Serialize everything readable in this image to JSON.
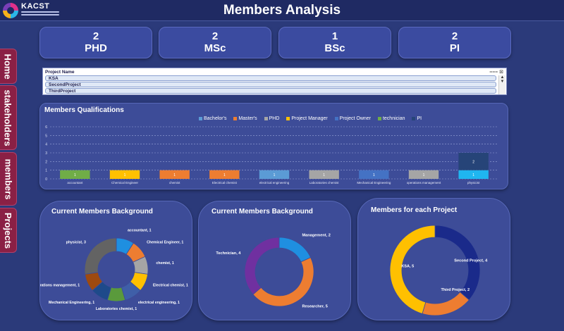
{
  "header": {
    "logo_text": "KACST",
    "title": "Members Analysis"
  },
  "nav": {
    "items": [
      {
        "label": "Home"
      },
      {
        "label": "stakeholders"
      },
      {
        "label": "members"
      },
      {
        "label": "Projects"
      }
    ]
  },
  "stats": [
    {
      "value": "2",
      "label": "PHD"
    },
    {
      "value": "2",
      "label": "MSc"
    },
    {
      "value": "1",
      "label": "BSc"
    },
    {
      "value": "2",
      "label": "PI"
    }
  ],
  "project_list": {
    "header": "Project Name",
    "items": [
      "KSA",
      "SecondProject",
      "ThirdProject"
    ]
  },
  "colors": {
    "bachelor": "#4a7fc0",
    "masters": "#ed7d31",
    "phd": "#a5a5a5",
    "project_manager": "#ffc000",
    "project_owner": "#4472c4",
    "technician": "#70ad47",
    "pi": "#264478"
  },
  "chart_data": [
    {
      "type": "bar",
      "title": "Members Qualifications",
      "legend": [
        "Bachelor's",
        "Master's",
        "PHD",
        "Project Manager",
        "Project Owner",
        "technician",
        "PI"
      ],
      "legend_position": "top",
      "grid": true,
      "ylim": [
        0,
        6
      ],
      "yticks": [
        0,
        1,
        2,
        3,
        4,
        5,
        6
      ],
      "categories": [
        "accountant",
        "Chemical Engineer",
        "chemist",
        "Electrical chemist",
        "electrical engineering",
        "Laboratories chemist",
        "Mechanical Engineering",
        "operations management",
        "physicist"
      ],
      "bars": [
        {
          "category": "accountant",
          "series": "technician",
          "value": 1,
          "color": "#70ad47"
        },
        {
          "category": "Chemical Engineer",
          "series": "Project Manager",
          "value": 1,
          "color": "#ffc000"
        },
        {
          "category": "chemist",
          "series": "Master's",
          "value": 1,
          "color": "#ed7d31"
        },
        {
          "category": "Electrical chemist",
          "series": "Master's",
          "value": 1,
          "color": "#ed7d31"
        },
        {
          "category": "electrical engineering",
          "series": "Bachelor's",
          "value": 1,
          "color": "#5b9bd5"
        },
        {
          "category": "Laboratories chemist",
          "series": "PHD",
          "value": 1,
          "color": "#a5a5a5"
        },
        {
          "category": "Mechanical Engineering",
          "series": "Project Owner",
          "value": 1,
          "color": "#4472c4"
        },
        {
          "category": "operations management",
          "series": "PHD",
          "value": 1,
          "color": "#a5a5a5"
        },
        {
          "category": "physicist",
          "series": "Bachelor's",
          "value": 1,
          "color": "#1fb6f0"
        },
        {
          "category": "physicist",
          "series": "PI",
          "value": 2,
          "color": "#264478"
        }
      ]
    },
    {
      "type": "pie",
      "donut": true,
      "title": "Current Members Background",
      "slices": [
        {
          "label": "accountant, 1",
          "value": 1,
          "color": "#1f8fe0"
        },
        {
          "label": "Chemical Engineer, 1",
          "value": 1,
          "color": "#ed7d31"
        },
        {
          "label": "chemist, 1",
          "value": 1,
          "color": "#a5a5a5"
        },
        {
          "label": "Electrical chemist, 1",
          "value": 1,
          "color": "#ffc000"
        },
        {
          "label": "electrical engineering, 1",
          "value": 1,
          "color": "#3f5fa8"
        },
        {
          "label": "Laboratories chemist, 1",
          "value": 1,
          "color": "#5a9a3c"
        },
        {
          "label": "Mechanical Engineering, 1",
          "value": 1,
          "color": "#1e4a8a"
        },
        {
          "label": "operations management, 1",
          "value": 1,
          "color": "#9e4a10"
        },
        {
          "label": "physicist, 3",
          "value": 3,
          "color": "#636363"
        }
      ]
    },
    {
      "type": "pie",
      "donut": true,
      "title": "Current Members Background",
      "slices": [
        {
          "label": "Management, 2",
          "value": 2,
          "color": "#1f8fe0"
        },
        {
          "label": "Researcher, 5",
          "value": 5,
          "color": "#ed7d31"
        },
        {
          "label": "Technician, 4",
          "value": 4,
          "color": "#7030a0"
        }
      ]
    },
    {
      "type": "pie",
      "donut": true,
      "title": "Members for each Project",
      "slices": [
        {
          "label": "Second Project, 4",
          "value": 4,
          "color": "#1a2a8a"
        },
        {
          "label": "Third Project, 2",
          "value": 2,
          "color": "#ed7d31"
        },
        {
          "label": "KSA, 5",
          "value": 5,
          "color": "#ffc000"
        }
      ]
    }
  ]
}
